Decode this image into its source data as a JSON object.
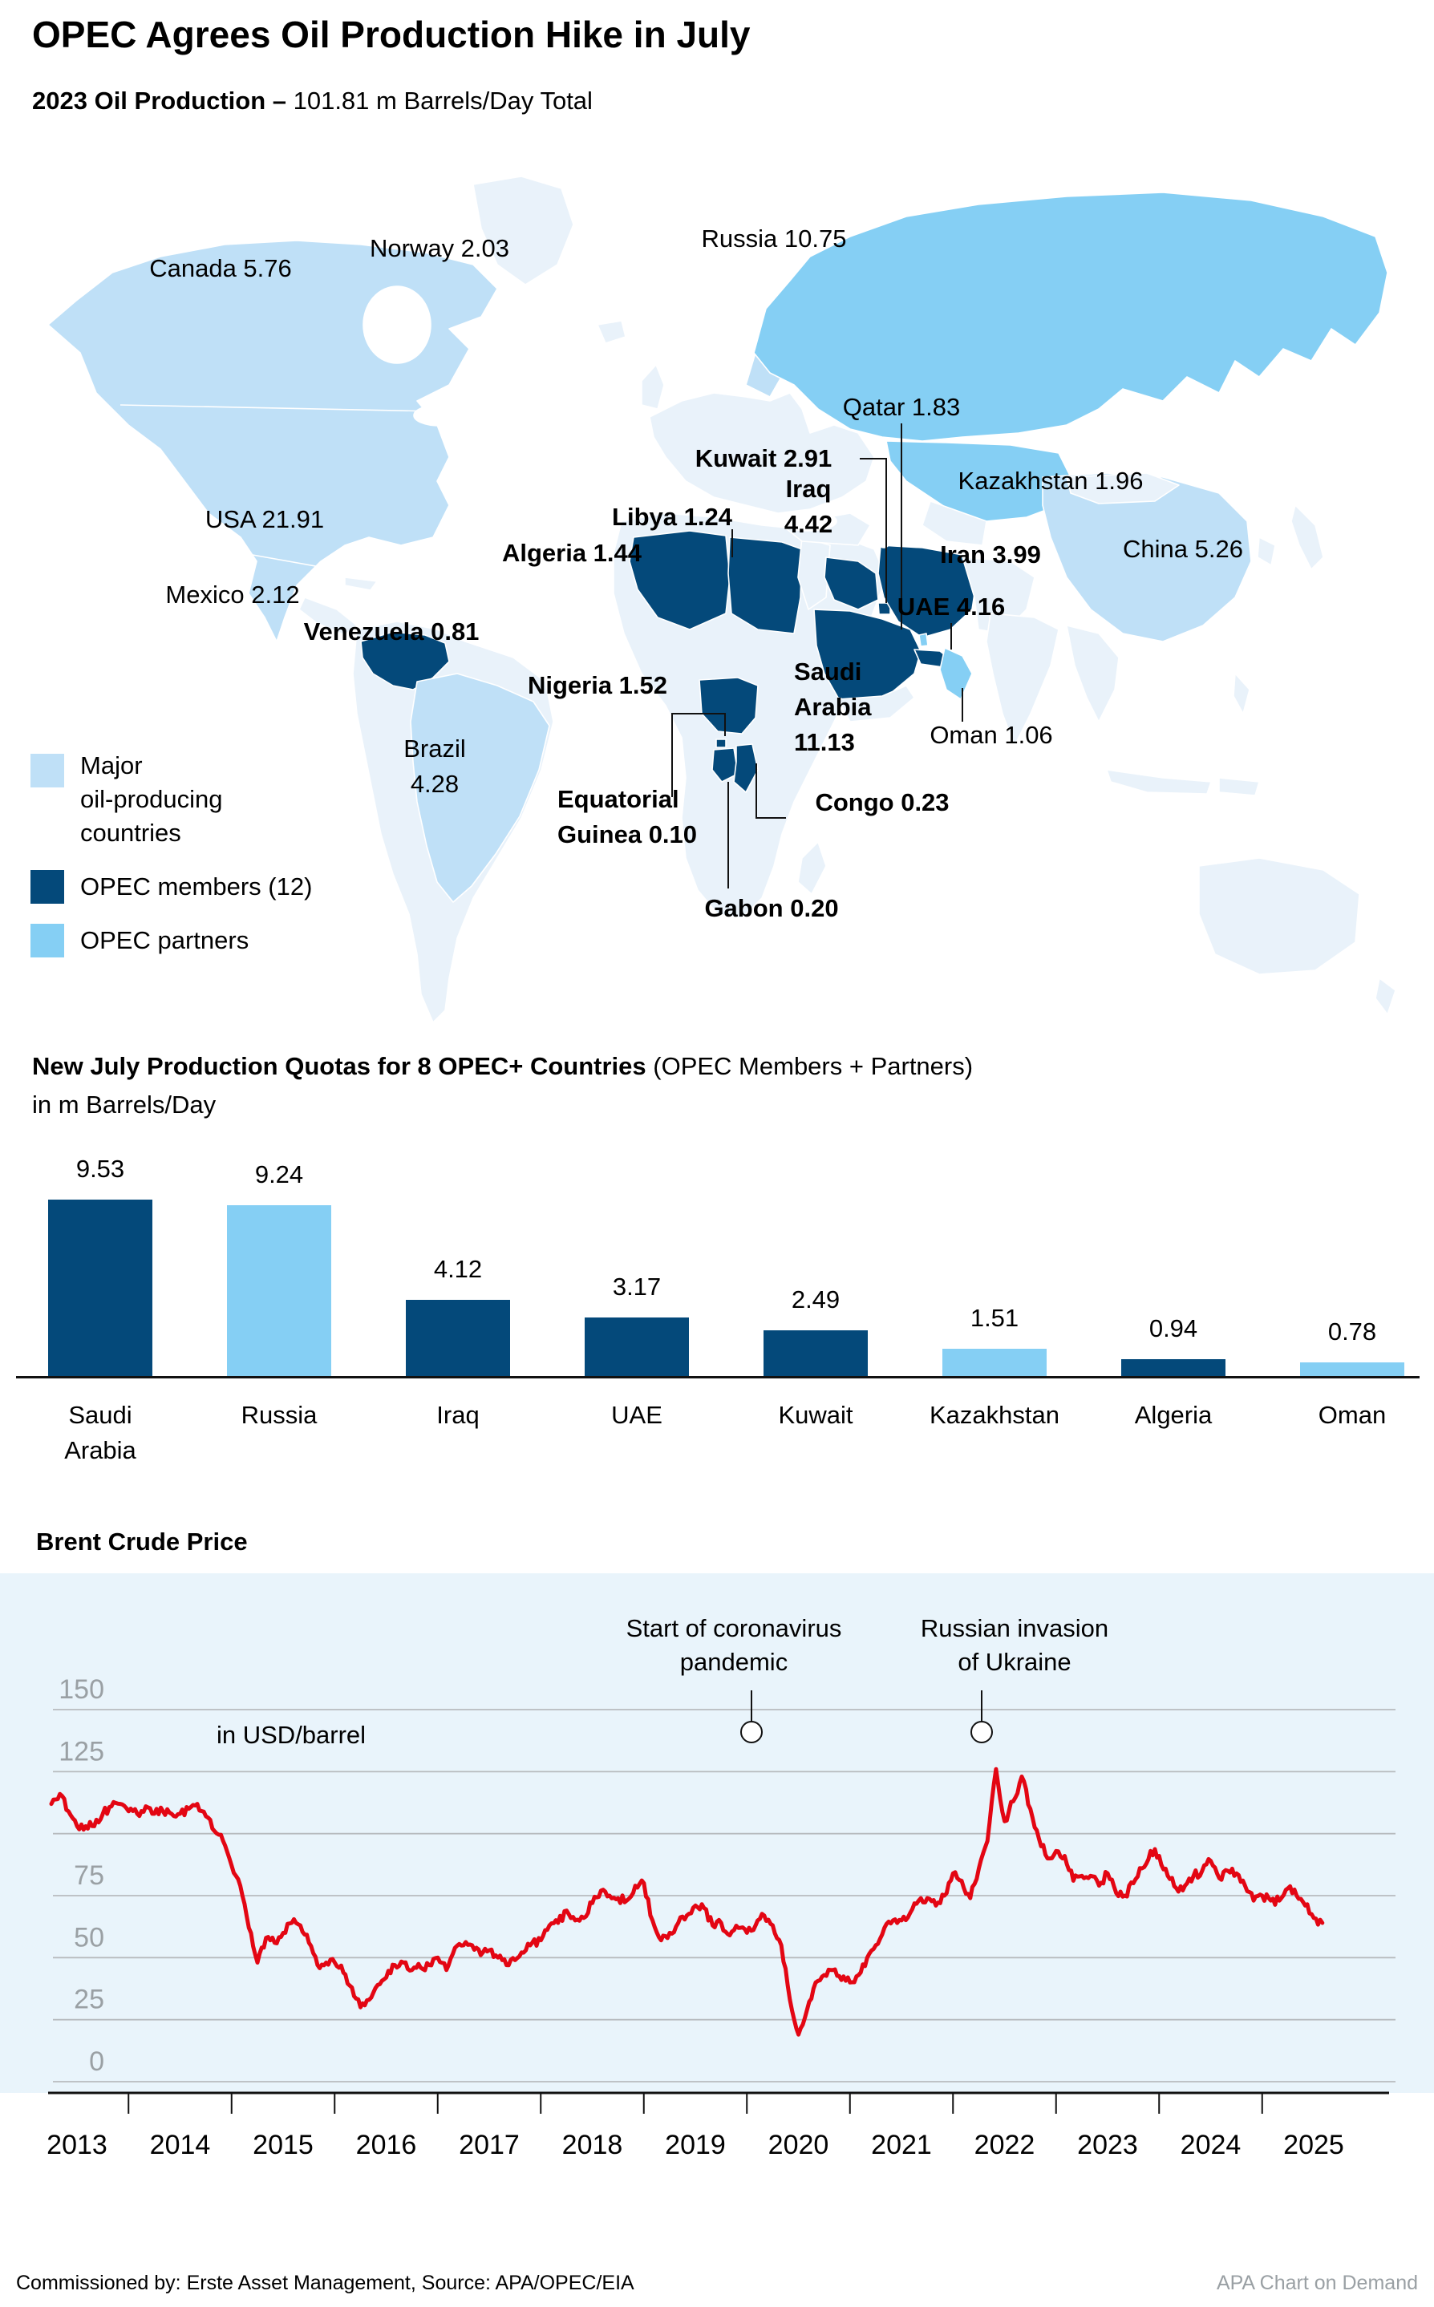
{
  "header": {
    "title": "OPEC Agrees Oil Production Hike in July",
    "subtitle_bold": "2023 Oil Production –",
    "subtitle_rest": " 101.81 m Barrels/Day Total"
  },
  "colors": {
    "opec_member": "#04497a",
    "opec_partner": "#85cff4",
    "major_producer": "#bfe0f7",
    "other_land": "#e9f2fa",
    "price_line": "#e30613",
    "panel_bg": "#e9f4fb",
    "gridline": "#b7bbbe",
    "axis_label_gray": "#9aa0a4"
  },
  "map": {
    "legend": [
      {
        "color": "#bfe0f7",
        "lines": [
          "Major",
          "oil-producing",
          "countries"
        ]
      },
      {
        "color": "#04497a",
        "lines": [
          "OPEC members (12)"
        ]
      },
      {
        "color": "#85cff4",
        "lines": [
          "OPEC partners"
        ]
      }
    ],
    "labels": [
      {
        "id": "canada",
        "lines": [
          "Canada 5.76"
        ],
        "bold": false
      },
      {
        "id": "norway",
        "lines": [
          "Norway 2.03"
        ],
        "bold": false
      },
      {
        "id": "russia",
        "lines": [
          "Russia 10.75"
        ],
        "bold": false
      },
      {
        "id": "qatar",
        "lines": [
          "Qatar 1.83"
        ],
        "bold": false
      },
      {
        "id": "kuwait",
        "lines": [
          "Kuwait 2.91"
        ],
        "bold": true
      },
      {
        "id": "kazakhstan",
        "lines": [
          "Kazakhstan 1.96"
        ],
        "bold": false
      },
      {
        "id": "usa",
        "lines": [
          "USA 21.91"
        ],
        "bold": false
      },
      {
        "id": "libya",
        "lines": [
          "Libya 1.24"
        ],
        "bold": true
      },
      {
        "id": "iraq",
        "lines": [
          "Iraq",
          "4.42"
        ],
        "bold": true
      },
      {
        "id": "algeria",
        "lines": [
          "Algeria 1.44"
        ],
        "bold": true
      },
      {
        "id": "china",
        "lines": [
          "China 5.26"
        ],
        "bold": false
      },
      {
        "id": "iran",
        "lines": [
          "Iran 3.99"
        ],
        "bold": true
      },
      {
        "id": "mexico",
        "lines": [
          "Mexico 2.12"
        ],
        "bold": false
      },
      {
        "id": "venezuela",
        "lines": [
          "Venezuela 0.81"
        ],
        "bold": true
      },
      {
        "id": "uae",
        "lines": [
          "UAE 4.16"
        ],
        "bold": true
      },
      {
        "id": "saudi",
        "lines": [
          "Saudi",
          "Arabia",
          "11.13"
        ],
        "bold": true
      },
      {
        "id": "nigeria",
        "lines": [
          "Nigeria 1.52"
        ],
        "bold": true
      },
      {
        "id": "oman",
        "lines": [
          "Oman 1.06"
        ],
        "bold": false
      },
      {
        "id": "brazil",
        "lines": [
          "Brazil",
          "4.28"
        ],
        "bold": false
      },
      {
        "id": "eq_guinea",
        "lines": [
          "Equatorial",
          "Guinea 0.10"
        ],
        "bold": true
      },
      {
        "id": "congo",
        "lines": [
          "Congo 0.23"
        ],
        "bold": true
      },
      {
        "id": "gabon",
        "lines": [
          "Gabon 0.20"
        ],
        "bold": true
      }
    ]
  },
  "chart_data": [
    {
      "type": "bar",
      "title_bold": "New July Production Quotas for 8 OPEC+ Countries",
      "title_rest": " (OPEC Members + Partners)",
      "subtitle": "in m Barrels/Day",
      "categories": [
        [
          "Saudi",
          "Arabia"
        ],
        [
          "Russia"
        ],
        [
          "Iraq"
        ],
        [
          "UAE"
        ],
        [
          "Kuwait"
        ],
        [
          "Kazakhstan"
        ],
        [
          "Algeria"
        ],
        [
          "Oman"
        ]
      ],
      "values": [
        9.53,
        9.24,
        4.12,
        3.17,
        2.49,
        1.51,
        0.94,
        0.78
      ],
      "bar_roles": [
        "member",
        "partner",
        "member",
        "member",
        "member",
        "partner",
        "member",
        "partner"
      ],
      "ylim": [
        0,
        10
      ]
    },
    {
      "type": "line",
      "title": "Brent Crude Price",
      "unit_label": "in USD/barrel",
      "ylim": [
        0,
        150
      ],
      "ytick_values": [
        0,
        25,
        50,
        75,
        100,
        125,
        150
      ],
      "ytick_labels_shown": [
        "0",
        "25",
        "50",
        "75",
        "",
        "125",
        "150"
      ],
      "x_tick_labels": [
        "2013",
        "2014",
        "2015",
        "2016",
        "2017",
        "2018",
        "2019",
        "2020",
        "2021",
        "2022",
        "2023",
        "2024",
        "2025"
      ],
      "start_month": "2013-01",
      "end_month": "2025-05",
      "monthly_values": [
        112,
        116,
        109,
        103,
        103,
        103,
        108,
        111,
        112,
        109,
        108,
        111,
        108,
        109,
        108,
        108,
        110,
        112,
        107,
        101,
        97,
        87,
        79,
        62,
        48,
        58,
        56,
        60,
        64,
        63,
        56,
        47,
        48,
        48,
        44,
        38,
        30,
        33,
        39,
        42,
        47,
        48,
        45,
        46,
        47,
        50,
        45,
        54,
        55,
        55,
        51,
        53,
        50,
        47,
        49,
        52,
        56,
        57,
        63,
        64,
        69,
        65,
        66,
        72,
        77,
        75,
        74,
        73,
        79,
        80,
        65,
        57,
        60,
        64,
        67,
        71,
        70,
        63,
        64,
        59,
        62,
        60,
        63,
        67,
        63,
        55,
        33,
        19,
        29,
        40,
        43,
        45,
        41,
        40,
        43,
        50,
        55,
        62,
        65,
        65,
        68,
        73,
        74,
        71,
        75,
        84,
        81,
        74,
        86,
        97,
        126,
        105,
        113,
        123,
        110,
        98,
        90,
        93,
        91,
        81,
        83,
        83,
        79,
        84,
        76,
        75,
        80,
        86,
        93,
        91,
        83,
        78,
        79,
        83,
        85,
        89,
        82,
        85,
        84,
        79,
        73,
        75,
        73,
        73,
        78,
        75,
        71,
        66,
        64
      ],
      "annotations": [
        {
          "lines": [
            "Start of coronavirus",
            "pandemic"
          ]
        },
        {
          "lines": [
            "Russian invasion",
            "of Ukraine"
          ]
        }
      ]
    }
  ],
  "footer": {
    "left": "Commissioned by: Erste Asset Management, Source: APA/OPEC/EIA",
    "right": "APA Chart on Demand"
  }
}
